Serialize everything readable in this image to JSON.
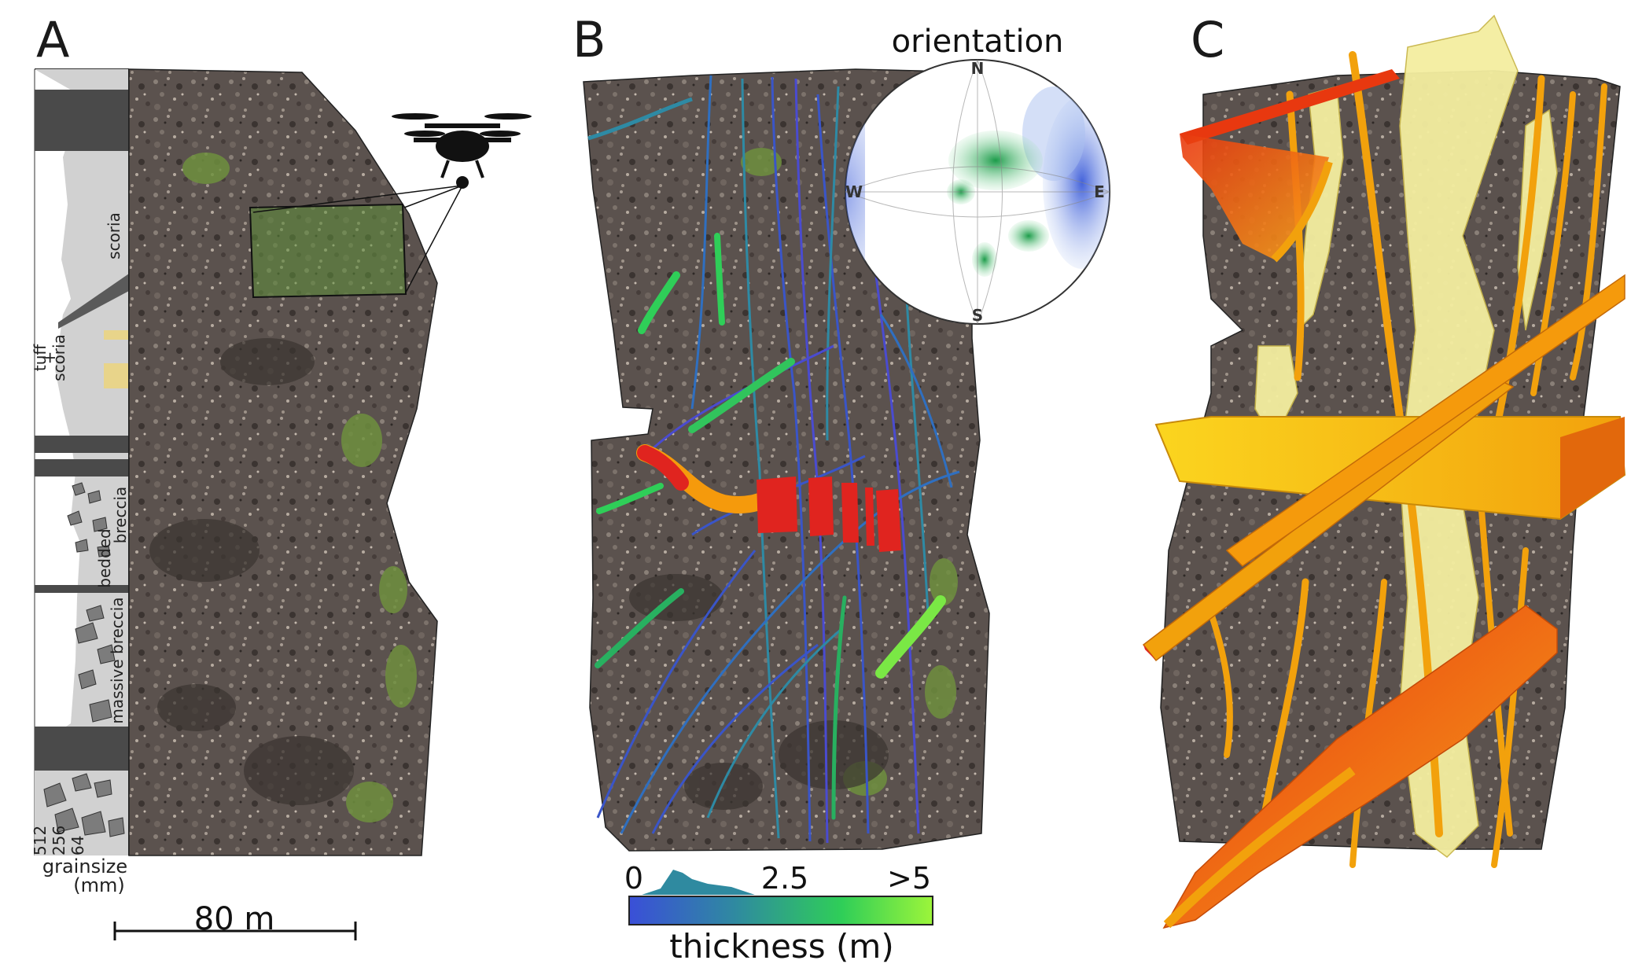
{
  "panels": {
    "a": {
      "label": "A"
    },
    "b": {
      "label": "B"
    },
    "c": {
      "label": "C"
    }
  },
  "column": {
    "units": [
      "scoria",
      "tuff",
      "+",
      "scoria",
      "breccia",
      "bedded",
      "massive breccia"
    ],
    "grainsize_ticks": [
      "512",
      "256",
      "64"
    ],
    "grainsize_title": "grainsize",
    "grainsize_unit": "(mm)"
  },
  "scale_bar": {
    "label": "80 m"
  },
  "stereonet": {
    "title": "orientation",
    "directions": {
      "n": "N",
      "s": "S",
      "e": "E",
      "w": "W"
    }
  },
  "colorbar": {
    "tick_min": "0",
    "tick_mid": "2.5",
    "tick_max": ">5",
    "label": "thickness (m)",
    "colors": [
      "#3a4fd8",
      "#2f8aa0",
      "#2fce58",
      "#9cf53a"
    ]
  },
  "colors": {
    "rock": "#5e5450",
    "rock_dark": "#3b3431",
    "vegetation": "#6f8f3e",
    "column_fill": "#cfcfcf",
    "column_dark": "#4a4a4a",
    "tuff": "#e8d48a",
    "dike_red": "#e0241f",
    "dike_orange": "#f59a0c",
    "dike_yellow": "#fbd81f",
    "dike_pale": "#f4eea0",
    "stereo_green": "#1fa34a",
    "stereo_blue": "#2a55d8"
  }
}
